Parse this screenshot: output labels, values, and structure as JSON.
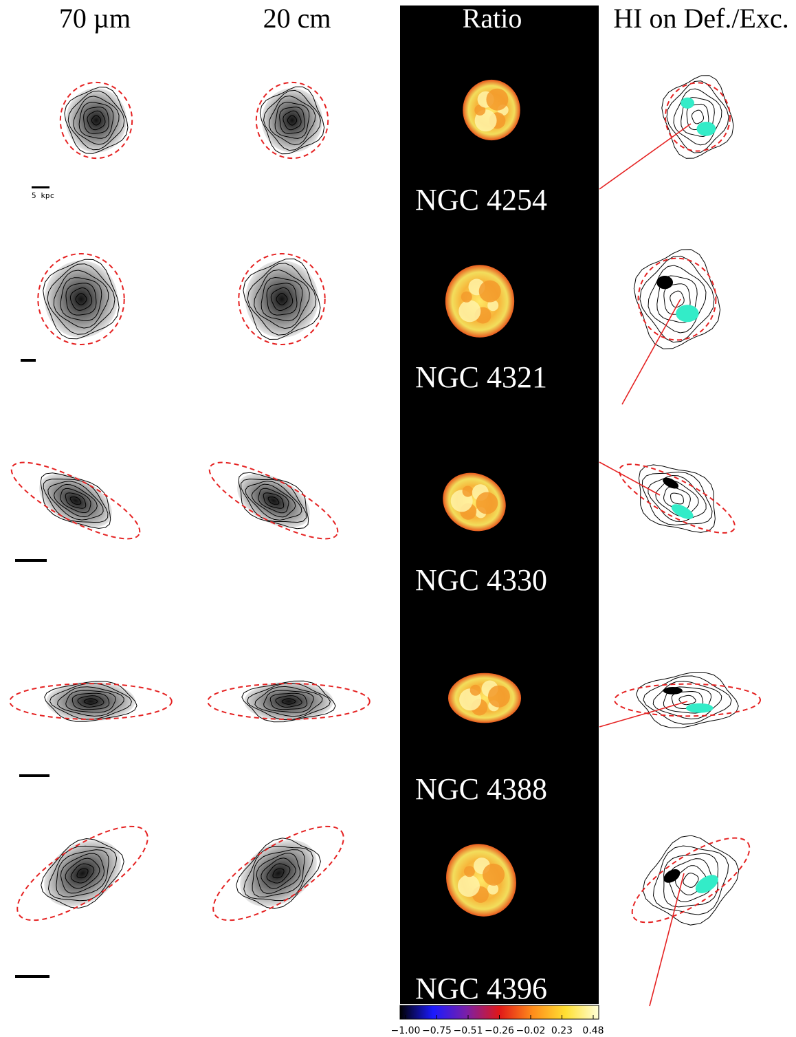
{
  "figure": {
    "columns": [
      {
        "key": "ir",
        "label": "70 µm"
      },
      {
        "key": "radio",
        "label": "20 cm"
      },
      {
        "key": "ratio",
        "label": "Ratio"
      },
      {
        "key": "hi",
        "label": "HI on Def./Exc."
      }
    ],
    "galaxies": [
      {
        "name": "NGC 4254",
        "shape": "round",
        "angle": 0,
        "ellipse_axes": [
          0.9,
          0.95
        ]
      },
      {
        "name": "NGC 4321",
        "shape": "round",
        "angle": 0,
        "ellipse_axes": [
          0.95,
          1.0
        ]
      },
      {
        "name": "NGC 4330",
        "shape": "edge",
        "angle": 28,
        "ellipse_axes": [
          1.0,
          0.28
        ]
      },
      {
        "name": "NGC 4388",
        "shape": "edge",
        "angle": 0,
        "ellipse_axes": [
          1.0,
          0.22
        ]
      },
      {
        "name": "NGC 4396",
        "shape": "edge",
        "angle": -33,
        "ellipse_axes": [
          1.0,
          0.35
        ]
      }
    ],
    "scale_bar_label": "5 kpc",
    "colorbar": {
      "tick_labels": [
        "−1.00",
        "−0.75",
        "−0.51",
        "−0.26",
        "−0.02",
        "0.23",
        "0.48"
      ],
      "stops": [
        "#000000",
        "#1a1aff",
        "#7a1fa8",
        "#e01818",
        "#ff8c1a",
        "#ffe033",
        "#ffffd8"
      ]
    },
    "colors": {
      "ellipse": "#e52222",
      "deficiency": "#000000",
      "excess": "#33ecc8",
      "ratio_panel_bg": "#000000",
      "pointer": "#e52222"
    }
  }
}
